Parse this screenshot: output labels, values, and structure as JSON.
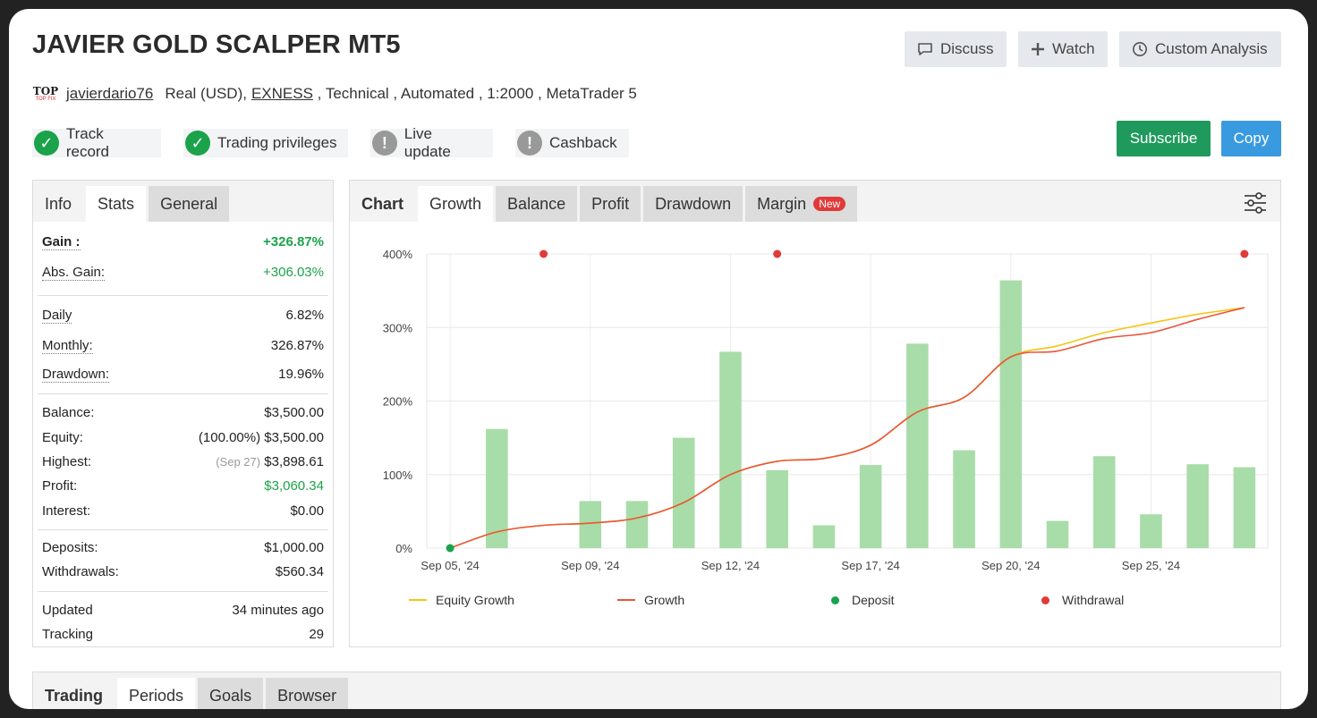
{
  "header": {
    "title": "JAVIER GOLD SCALPER MT5",
    "discuss_label": "Discuss",
    "watch_label": "Watch",
    "custom_analysis_label": "Custom Analysis"
  },
  "meta": {
    "logo_top": "TOP",
    "logo_sub": "TOP FIX",
    "author": "javierdario76",
    "account_type": "Real (USD),",
    "broker": "EXNESS",
    "details": " , Technical , Automated , 1:2000 , MetaTrader 5"
  },
  "badges": [
    {
      "label": "Track record",
      "status": "ok"
    },
    {
      "label": "Trading privileges",
      "status": "ok"
    },
    {
      "label": "Live update",
      "status": "warn"
    },
    {
      "label": "Cashback",
      "status": "warn"
    }
  ],
  "actions": {
    "subscribe_label": "Subscribe",
    "copy_label": "Copy",
    "subscribe_color": "#1f9a5c",
    "copy_color": "#3a9ae0"
  },
  "left_panel": {
    "tabs": [
      "Info",
      "Stats",
      "General"
    ],
    "rows": {
      "gain": {
        "k": "Gain :",
        "v": "+326.87%"
      },
      "abs_gain": {
        "k": "Abs. Gain:",
        "v": "+306.03%"
      },
      "daily": {
        "k": "Daily",
        "v": "6.82%"
      },
      "monthly": {
        "k": "Monthly:",
        "v": "326.87%"
      },
      "drawdown": {
        "k": "Drawdown:",
        "v": "19.96%"
      },
      "balance": {
        "k": "Balance:",
        "v": "$3,500.00"
      },
      "equity": {
        "k": "Equity:",
        "v": "(100.00%) $3,500.00"
      },
      "highest": {
        "k": "Highest:",
        "note": "(Sep 27)",
        "v": "$3,898.61"
      },
      "profit": {
        "k": "Profit:",
        "v": "$3,060.34"
      },
      "interest": {
        "k": "Interest:",
        "v": "$0.00"
      },
      "deposits": {
        "k": "Deposits:",
        "v": "$1,000.00"
      },
      "withdrawals": {
        "k": "Withdrawals:",
        "v": "$560.34"
      },
      "updated": {
        "k": "Updated",
        "v": "34 minutes ago"
      },
      "tracking": {
        "k": "Tracking",
        "v": "29"
      }
    }
  },
  "chart_panel": {
    "label": "Chart",
    "tabs": [
      "Growth",
      "Balance",
      "Profit",
      "Drawdown",
      "Margin"
    ],
    "new_tag": "New",
    "legend": {
      "equity": "Equity Growth",
      "growth": "Growth",
      "deposit": "Deposit",
      "withdrawal": "Withdrawal"
    }
  },
  "chart_data": {
    "type": "line",
    "title": "",
    "xlabel": "",
    "ylabel": "",
    "ylim": [
      0,
      400
    ],
    "y_ticks": [
      "0%",
      "100%",
      "200%",
      "300%",
      "400%"
    ],
    "x_tick_labels": [
      "Sep 05, '24",
      "Sep 09, '24",
      "Sep 12, '24",
      "Sep 17, '24",
      "Sep 20, '24",
      "Sep 25, '24"
    ],
    "grid": true,
    "legend_position": "bottom",
    "bars": {
      "color": "#a8dca8",
      "values": [
        0,
        162,
        0,
        64,
        64,
        150,
        267,
        106,
        31,
        113,
        278,
        133,
        364,
        37,
        125,
        46,
        114,
        110
      ]
    },
    "series": [
      {
        "name": "Equity Growth",
        "color": "#f5c518",
        "values": [
          0,
          22,
          31,
          34,
          41,
          62,
          100,
          118,
          122,
          140,
          185,
          205,
          260,
          275,
          293,
          306,
          318,
          327
        ]
      },
      {
        "name": "Growth",
        "color": "#e8553a",
        "values": [
          0,
          22,
          31,
          34,
          41,
          62,
          100,
          118,
          122,
          140,
          185,
          205,
          260,
          268,
          285,
          293,
          311,
          327
        ]
      }
    ],
    "deposits": [
      {
        "index": 0,
        "value": 0
      }
    ],
    "withdrawals": [
      {
        "index": 2,
        "value": 400
      },
      {
        "index": 7,
        "value": 400
      },
      {
        "index": 17,
        "value": 400
      }
    ]
  },
  "bottom_panel": {
    "label": "Trading",
    "tabs": [
      "Periods",
      "Goals",
      "Browser"
    ]
  },
  "colors": {
    "green": "#1aa34a",
    "red": "#e03a3a"
  }
}
